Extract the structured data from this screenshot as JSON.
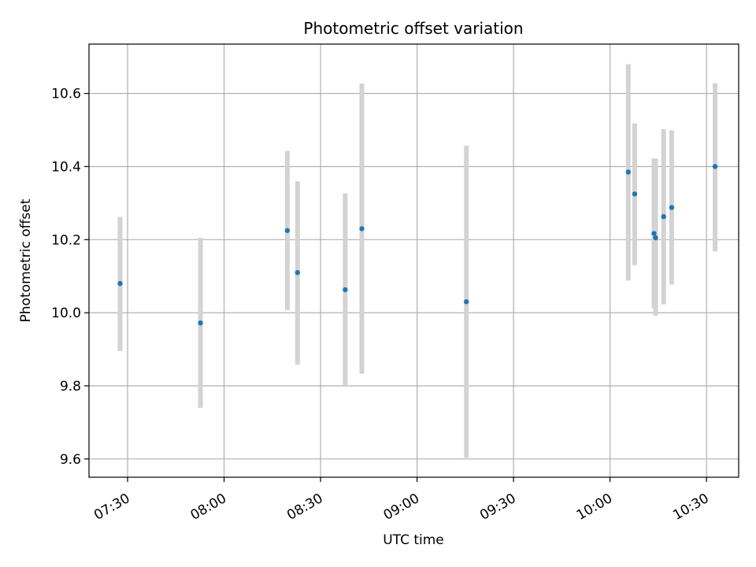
{
  "chart_data": {
    "type": "scatter",
    "title": "Photometric offset variation",
    "xlabel": "UTC time",
    "ylabel": "Photometric offset",
    "xlim": [
      "07:18",
      "10:40"
    ],
    "ylim": [
      9.55,
      10.735
    ],
    "x_ticks": [
      "07:30",
      "08:00",
      "08:30",
      "09:00",
      "09:30",
      "10:00",
      "10:30"
    ],
    "y_ticks": [
      9.6,
      9.8,
      10.0,
      10.2,
      10.4,
      10.6
    ],
    "grid": true,
    "colors": {
      "points": "#1f77b4",
      "error_bars": "#d3d3d3",
      "grid": "#b0b0b0"
    },
    "series": [
      {
        "points": [
          {
            "x": "07:27:40",
            "y": 10.08,
            "ylow": 9.895,
            "yhigh": 10.262
          },
          {
            "x": "07:52:40",
            "y": 9.972,
            "ylow": 9.74,
            "yhigh": 10.205
          },
          {
            "x": "08:19:40",
            "y": 10.225,
            "ylow": 10.007,
            "yhigh": 10.443
          },
          {
            "x": "08:22:50",
            "y": 10.11,
            "ylow": 9.858,
            "yhigh": 10.36
          },
          {
            "x": "08:37:40",
            "y": 10.063,
            "ylow": 9.8,
            "yhigh": 10.327
          },
          {
            "x": "08:42:50",
            "y": 10.23,
            "ylow": 9.833,
            "yhigh": 10.627
          },
          {
            "x": "09:15:20",
            "y": 10.03,
            "ylow": 9.603,
            "yhigh": 10.457
          },
          {
            "x": "10:05:40",
            "y": 10.385,
            "ylow": 10.088,
            "yhigh": 10.68
          },
          {
            "x": "10:07:40",
            "y": 10.325,
            "ylow": 10.13,
            "yhigh": 10.518
          },
          {
            "x": "10:13:40",
            "y": 10.217,
            "ylow": 10.012,
            "yhigh": 10.422
          },
          {
            "x": "10:14:10",
            "y": 10.205,
            "ylow": 9.992,
            "yhigh": 10.422
          },
          {
            "x": "10:16:40",
            "y": 10.263,
            "ylow": 10.023,
            "yhigh": 10.502
          },
          {
            "x": "10:19:10",
            "y": 10.288,
            "ylow": 10.077,
            "yhigh": 10.499
          },
          {
            "x": "10:32:40",
            "y": 10.4,
            "ylow": 10.168,
            "yhigh": 10.628
          }
        ]
      }
    ]
  }
}
